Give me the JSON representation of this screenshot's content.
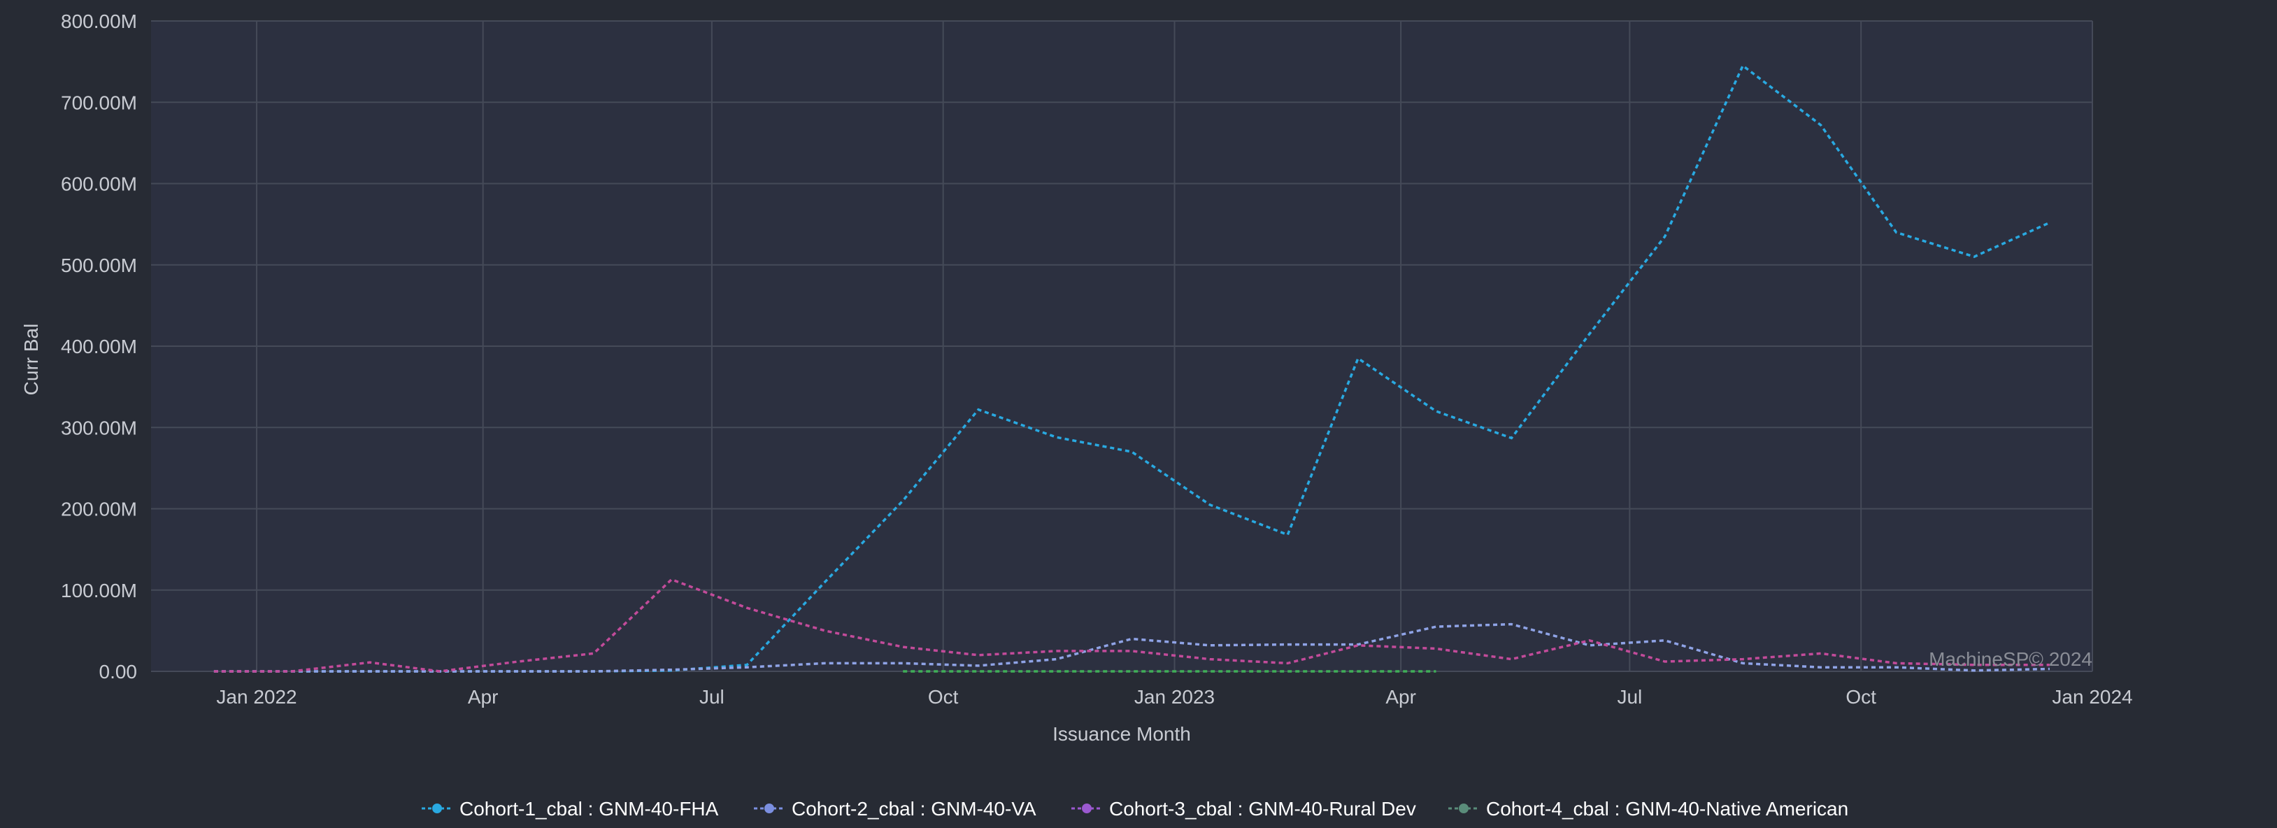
{
  "chart_data": {
    "type": "line",
    "xlabel": "Issuance Month",
    "ylabel": "Curr Bal",
    "x_ticks": [
      "Jan 2022",
      "Apr",
      "Jul",
      "Oct",
      "Jan 2023",
      "Apr",
      "Jul",
      "Oct",
      "Jan 2024"
    ],
    "y_ticks": [
      "0.00",
      "100.00M",
      "200.00M",
      "300.00M",
      "400.00M",
      "500.00M",
      "600.00M",
      "700.00M",
      "800.00M"
    ],
    "ylim": [
      0,
      800
    ],
    "y_unit": "M",
    "xlim": [
      "2021-11-20",
      "2024-01-01"
    ],
    "grid": true,
    "legend_position": "bottom",
    "watermark": "MachineSP© 2024",
    "series": [
      {
        "name": "Cohort-1_cbal : GNM-40-FHA",
        "color": "#29a9e1",
        "points": [
          [
            "2021-12-15",
            0
          ],
          [
            "2022-01-15",
            0
          ],
          [
            "2022-02-15",
            0
          ],
          [
            "2022-03-15",
            0
          ],
          [
            "2022-04-15",
            0
          ],
          [
            "2022-05-15",
            0
          ],
          [
            "2022-06-15",
            1
          ],
          [
            "2022-07-15",
            8
          ],
          [
            "2022-08-15",
            110
          ],
          [
            "2022-09-15",
            210
          ],
          [
            "2022-10-15",
            322
          ],
          [
            "2022-11-15",
            288
          ],
          [
            "2022-12-15",
            270
          ],
          [
            "2023-01-15",
            205
          ],
          [
            "2023-02-15",
            168
          ],
          [
            "2023-03-15",
            385
          ],
          [
            "2023-04-15",
            320
          ],
          [
            "2023-05-15",
            287
          ],
          [
            "2023-06-15",
            415
          ],
          [
            "2023-07-15",
            535
          ],
          [
            "2023-08-15",
            745
          ],
          [
            "2023-09-15",
            672
          ],
          [
            "2023-10-15",
            540
          ],
          [
            "2023-11-15",
            510
          ],
          [
            "2023-12-15",
            552
          ]
        ]
      },
      {
        "name": "Cohort-2_cbal : GNM-40-VA",
        "color": "#8fa3e6",
        "points": [
          [
            "2021-12-15",
            0
          ],
          [
            "2022-01-15",
            0
          ],
          [
            "2022-02-15",
            0
          ],
          [
            "2022-03-15",
            0
          ],
          [
            "2022-04-15",
            0
          ],
          [
            "2022-05-15",
            0
          ],
          [
            "2022-06-15",
            2
          ],
          [
            "2022-07-15",
            5
          ],
          [
            "2022-08-15",
            10
          ],
          [
            "2022-09-15",
            10
          ],
          [
            "2022-10-15",
            7
          ],
          [
            "2022-11-15",
            15
          ],
          [
            "2022-12-15",
            40
          ],
          [
            "2023-01-15",
            32
          ],
          [
            "2023-02-15",
            33
          ],
          [
            "2023-03-15",
            33
          ],
          [
            "2023-04-15",
            55
          ],
          [
            "2023-05-15",
            58
          ],
          [
            "2023-06-15",
            32
          ],
          [
            "2023-07-15",
            38
          ],
          [
            "2023-08-15",
            10
          ],
          [
            "2023-09-15",
            5
          ],
          [
            "2023-10-15",
            5
          ],
          [
            "2023-11-15",
            1
          ],
          [
            "2023-12-15",
            3
          ]
        ]
      },
      {
        "name": "Cohort-3_cbal : GNM-40-Rural Dev",
        "color": "#c24b9a",
        "points": [
          [
            "2021-12-15",
            0
          ],
          [
            "2022-01-15",
            0
          ],
          [
            "2022-02-15",
            11
          ],
          [
            "2022-03-15",
            0
          ],
          [
            "2022-04-15",
            12
          ],
          [
            "2022-05-15",
            22
          ],
          [
            "2022-06-15",
            113
          ],
          [
            "2022-07-15",
            78
          ],
          [
            "2022-08-15",
            50
          ],
          [
            "2022-09-15",
            30
          ],
          [
            "2022-10-15",
            20
          ],
          [
            "2022-11-15",
            25
          ],
          [
            "2022-12-15",
            25
          ],
          [
            "2023-01-15",
            15
          ],
          [
            "2023-02-15",
            10
          ],
          [
            "2023-03-15",
            32
          ],
          [
            "2023-04-15",
            28
          ],
          [
            "2023-05-15",
            15
          ],
          [
            "2023-06-15",
            38
          ],
          [
            "2023-07-15",
            12
          ],
          [
            "2023-08-15",
            15
          ],
          [
            "2023-09-15",
            22
          ],
          [
            "2023-10-15",
            10
          ],
          [
            "2023-11-15",
            8
          ],
          [
            "2023-12-15",
            8
          ]
        ]
      },
      {
        "name": "Cohort-4_cbal : GNM-40-Native American",
        "color": "#3fae57",
        "points": [
          [
            "2022-09-15",
            0
          ],
          [
            "2022-10-15",
            0
          ],
          [
            "2022-11-15",
            0
          ],
          [
            "2022-12-15",
            0
          ],
          [
            "2023-01-15",
            0
          ],
          [
            "2023-02-15",
            0
          ],
          [
            "2023-03-15",
            0
          ],
          [
            "2023-04-15",
            0
          ]
        ]
      }
    ]
  },
  "legend": {
    "marker_colors": [
      "#29a9e1",
      "#7b8fe0",
      "#9b59d0",
      "#5a8c7a"
    ]
  }
}
